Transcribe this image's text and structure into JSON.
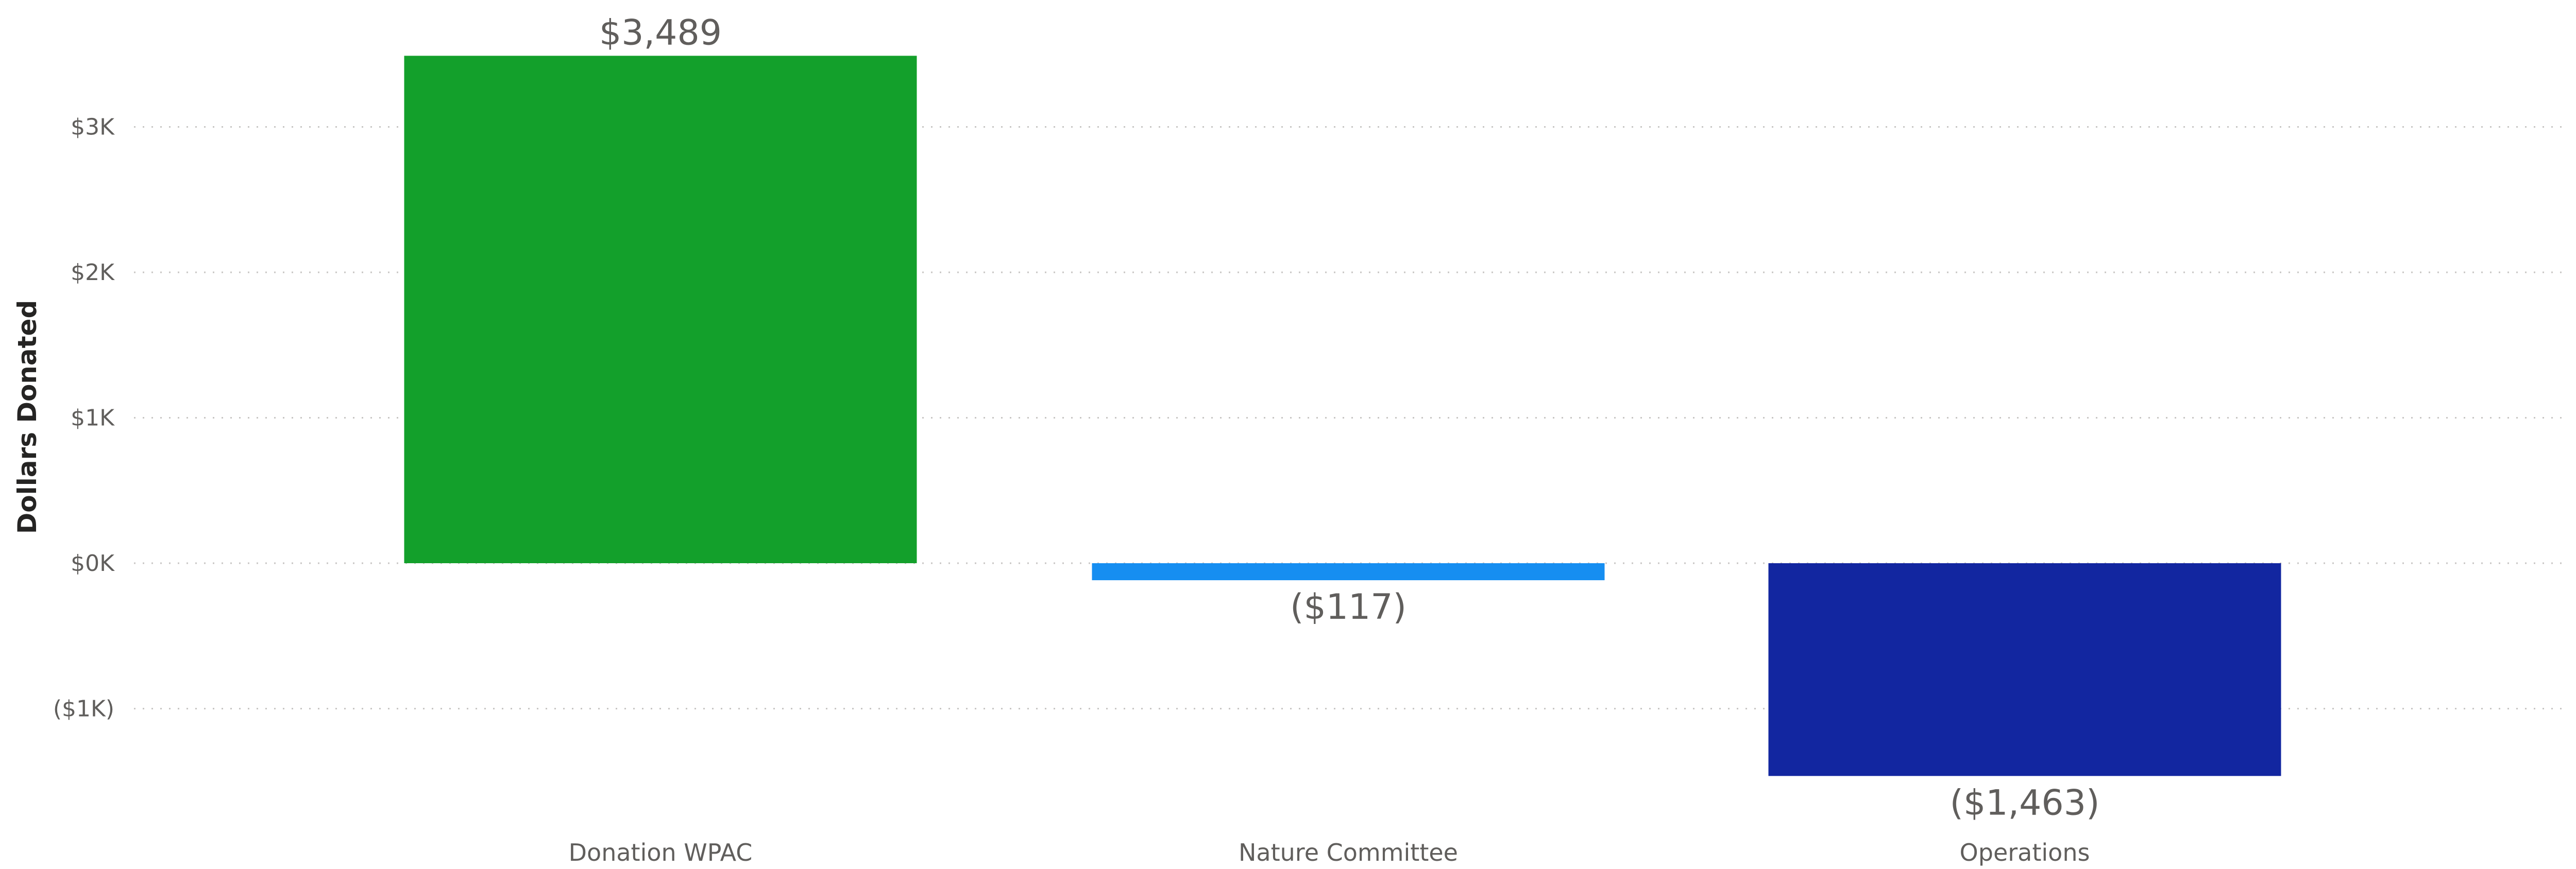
{
  "chart_data": {
    "type": "bar",
    "ylabel": "Dollars Donated",
    "xlabel": "",
    "title": "",
    "ylim": [
      -1500,
      3500
    ],
    "grid": true,
    "yticks": [
      {
        "value": 3000,
        "label": "$3K"
      },
      {
        "value": 2000,
        "label": "$2K"
      },
      {
        "value": 1000,
        "label": "$1K"
      },
      {
        "value": 0,
        "label": "$0K"
      },
      {
        "value": -1000,
        "label": "($1K)"
      }
    ],
    "bars": [
      {
        "category": "Donation WPAC",
        "value": 3489,
        "label": "$3,489",
        "color": "#13a02b"
      },
      {
        "category": "Nature Committee",
        "value": -117,
        "label": "($117)",
        "color": "#168ef1"
      },
      {
        "category": "Operations",
        "value": -1463,
        "label": "($1,463)",
        "color": "#1226a0"
      }
    ]
  }
}
